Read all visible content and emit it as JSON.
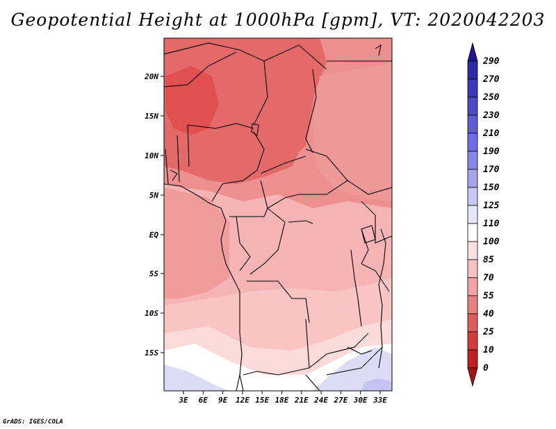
{
  "title": "Geopotential Height at 1000hPa [gpm], VT: 2020042203",
  "credit": "GrADS: IGES/COLA",
  "axes": {
    "lat_labels": [
      "20N",
      "15N",
      "10N",
      "5N",
      "EQ",
      "5S",
      "10S",
      "15S"
    ],
    "lon_labels": [
      "3E",
      "6E",
      "9E",
      "12E",
      "15E",
      "18E",
      "21E",
      "24E",
      "27E",
      "30E",
      "33E"
    ]
  },
  "colorbar": {
    "labels": [
      "290",
      "270",
      "250",
      "230",
      "210",
      "190",
      "170",
      "150",
      "125",
      "110",
      "100",
      "85",
      "70",
      "55",
      "40",
      "25",
      "10",
      "0"
    ],
    "colors": [
      "#1e1496",
      "#2b2ba8",
      "#3a3ab8",
      "#4b4bc8",
      "#5c5cd6",
      "#6e6ee2",
      "#8585ea",
      "#a3a3f0",
      "#c8c8f6",
      "#e6e6fb",
      "#ffffff",
      "#fde0e0",
      "#f9c2c2",
      "#f3a3a3",
      "#e98080",
      "#df5c5c",
      "#d43c3c",
      "#c02020",
      "#a51515"
    ]
  },
  "field_colors": {
    "deep_red": "#e05050",
    "red": "#e46a6a",
    "mid_red": "#ee9090",
    "light_red": "#f4a8a8",
    "pale_red": "#f8c4c4",
    "very_pale": "#fbdada",
    "white": "#ffffff",
    "pale_blue": "#dcdcf6",
    "blue": "#c4c4f0"
  }
}
